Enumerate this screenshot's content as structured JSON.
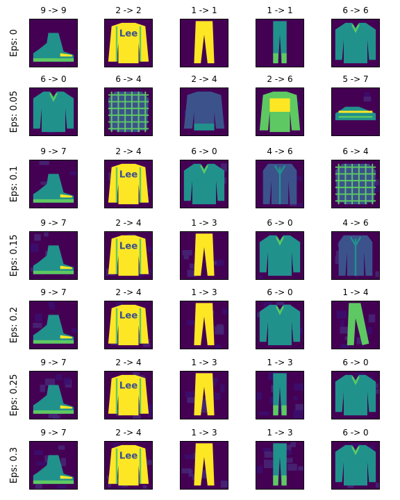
{
  "chart_data": {
    "type": "image_grid",
    "row_labels": [
      "Eps: 0",
      "Eps: 0.05",
      "Eps: 0.1",
      "Eps: 0.15",
      "Eps: 0.2",
      "Eps: 0.25",
      "Eps: 0.3"
    ],
    "epsilons": [
      0,
      0.05,
      0.1,
      0.15,
      0.2,
      0.25,
      0.3
    ],
    "rows": [
      [
        {
          "title": "9 -> 9",
          "true": 9,
          "pred": 9,
          "item": "sneaker-boot"
        },
        {
          "title": "2 -> 2",
          "true": 2,
          "pred": 2,
          "item": "lee-sweater"
        },
        {
          "title": "1 -> 1",
          "true": 1,
          "pred": 1,
          "item": "trousers"
        },
        {
          "title": "1 -> 1",
          "true": 1,
          "pred": 1,
          "item": "trousers-thin"
        },
        {
          "title": "6 -> 6",
          "true": 6,
          "pred": 6,
          "item": "shirt"
        }
      ],
      [
        {
          "title": "6 -> 0",
          "true": 6,
          "pred": 0,
          "item": "shirt"
        },
        {
          "title": "6 -> 4",
          "true": 6,
          "pred": 4,
          "item": "plaid-shirt"
        },
        {
          "title": "2 -> 4",
          "true": 2,
          "pred": 4,
          "item": "sweater-dark"
        },
        {
          "title": "2 -> 6",
          "true": 2,
          "pred": 6,
          "item": "sweater-bright"
        },
        {
          "title": "5 -> 7",
          "true": 5,
          "pred": 7,
          "item": "sandal"
        }
      ],
      [
        {
          "title": "9 -> 7",
          "true": 9,
          "pred": 7,
          "item": "sneaker-boot"
        },
        {
          "title": "2 -> 4",
          "true": 2,
          "pred": 4,
          "item": "lee-sweater"
        },
        {
          "title": "6 -> 0",
          "true": 6,
          "pred": 0,
          "item": "shirt"
        },
        {
          "title": "4 -> 6",
          "true": 4,
          "pred": 6,
          "item": "coat"
        },
        {
          "title": "6 -> 4",
          "true": 6,
          "pred": 4,
          "item": "plaid-shirt"
        }
      ],
      [
        {
          "title": "9 -> 7",
          "true": 9,
          "pred": 7,
          "item": "sneaker-boot"
        },
        {
          "title": "2 -> 4",
          "true": 2,
          "pred": 4,
          "item": "lee-sweater"
        },
        {
          "title": "1 -> 3",
          "true": 1,
          "pred": 3,
          "item": "trousers"
        },
        {
          "title": "6 -> 0",
          "true": 6,
          "pred": 0,
          "item": "shirt"
        },
        {
          "title": "4 -> 6",
          "true": 4,
          "pred": 6,
          "item": "coat"
        }
      ],
      [
        {
          "title": "9 -> 7",
          "true": 9,
          "pred": 7,
          "item": "sneaker-boot"
        },
        {
          "title": "2 -> 4",
          "true": 2,
          "pred": 4,
          "item": "lee-sweater"
        },
        {
          "title": "1 -> 3",
          "true": 1,
          "pred": 3,
          "item": "trousers"
        },
        {
          "title": "6 -> 0",
          "true": 6,
          "pred": 0,
          "item": "shirt"
        },
        {
          "title": "1 -> 4",
          "true": 1,
          "pred": 4,
          "item": "trousers-angled"
        }
      ],
      [
        {
          "title": "9 -> 7",
          "true": 9,
          "pred": 7,
          "item": "sneaker-boot"
        },
        {
          "title": "2 -> 4",
          "true": 2,
          "pred": 4,
          "item": "lee-sweater"
        },
        {
          "title": "1 -> 3",
          "true": 1,
          "pred": 3,
          "item": "trousers"
        },
        {
          "title": "1 -> 3",
          "true": 1,
          "pred": 3,
          "item": "trousers-thin"
        },
        {
          "title": "6 -> 0",
          "true": 6,
          "pred": 0,
          "item": "shirt"
        }
      ],
      [
        {
          "title": "9 -> 7",
          "true": 9,
          "pred": 7,
          "item": "sneaker-boot"
        },
        {
          "title": "2 -> 4",
          "true": 2,
          "pred": 4,
          "item": "lee-sweater"
        },
        {
          "title": "1 -> 3",
          "true": 1,
          "pred": 3,
          "item": "trousers"
        },
        {
          "title": "1 -> 3",
          "true": 1,
          "pred": 3,
          "item": "trousers-thin"
        },
        {
          "title": "6 -> 0",
          "true": 6,
          "pred": 0,
          "item": "shirt"
        }
      ]
    ],
    "colormap": "viridis",
    "colors": {
      "background": "#440154",
      "low": "#3b528b",
      "mid": "#21918c",
      "high": "#5ec962",
      "peak": "#fde725"
    }
  }
}
